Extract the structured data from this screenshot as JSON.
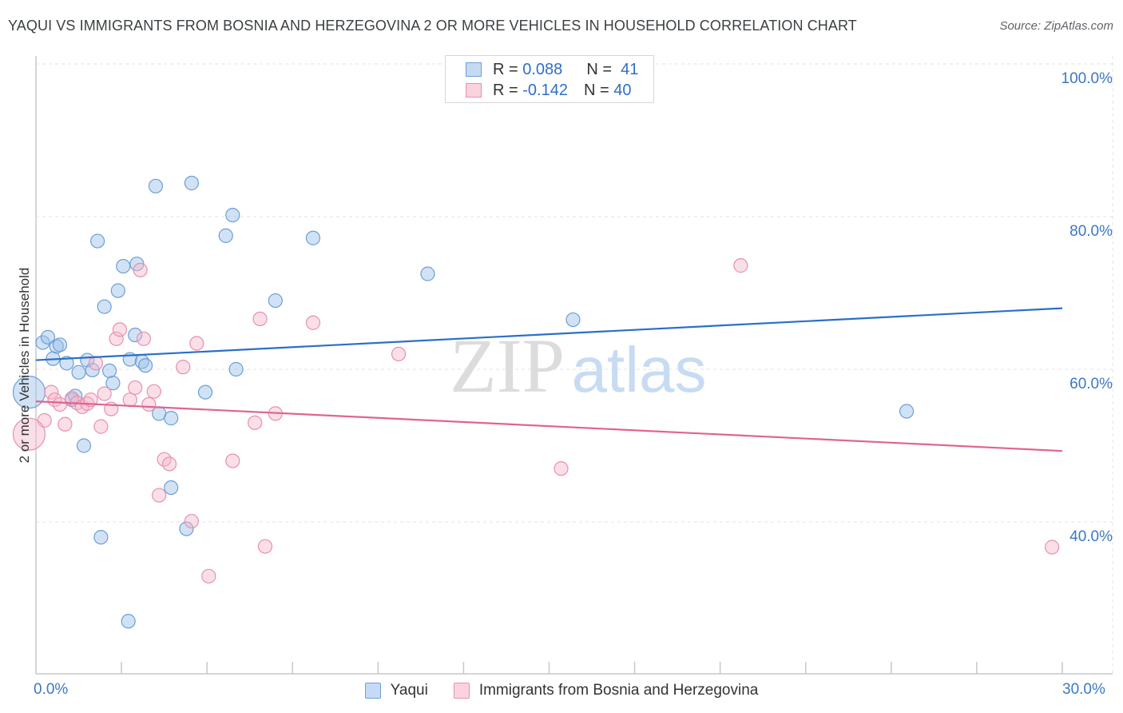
{
  "chart_data": {
    "type": "scatter",
    "title": "YAQUI VS IMMIGRANTS FROM BOSNIA AND HERZEGOVINA 2 OR MORE VEHICLES IN HOUSEHOLD CORRELATION CHART",
    "source": "Source: ZipAtlas.com",
    "ylabel": "2 or more Vehicles in Household",
    "xlabel": "",
    "xlim": [
      0,
      30
    ],
    "ylim": [
      20,
      102
    ],
    "x_tick_labels": {
      "min": "0.0%",
      "max": "30.0%"
    },
    "y_ticks": [
      {
        "value": 100,
        "label": "100.0%"
      },
      {
        "value": 80,
        "label": "80.0%"
      },
      {
        "value": 60,
        "label": "60.0%"
      },
      {
        "value": 40,
        "label": "40.0%"
      }
    ],
    "watermark": {
      "part1": "ZIP",
      "part2": "atlas"
    },
    "legend": [
      {
        "r_label": "R =",
        "r": "0.088",
        "n_label": "N =",
        "n": "41"
      },
      {
        "r_label": "R =",
        "r": "-0.142",
        "n_label": "N =",
        "n": "40"
      }
    ],
    "series": [
      {
        "name": "Yaqui",
        "color": "#9bbfe9",
        "stroke": "#6a9fd8",
        "line_color": "#2b6fc9",
        "trend": {
          "x0": 0,
          "y0": 61.2,
          "x1": 30,
          "y1": 68.0
        },
        "points": [
          [
            0.2,
            63.5
          ],
          [
            0.35,
            64.2
          ],
          [
            0.5,
            61.4
          ],
          [
            0.6,
            63.0
          ],
          [
            0.7,
            63.2
          ],
          [
            0.9,
            60.8
          ],
          [
            1.05,
            56.0
          ],
          [
            1.15,
            56.5
          ],
          [
            1.25,
            59.6
          ],
          [
            1.4,
            50.0
          ],
          [
            1.5,
            61.2
          ],
          [
            1.65,
            59.9
          ],
          [
            1.8,
            76.8
          ],
          [
            1.9,
            38.0
          ],
          [
            2.0,
            68.2
          ],
          [
            2.15,
            59.8
          ],
          [
            2.25,
            58.2
          ],
          [
            2.4,
            70.3
          ],
          [
            2.55,
            73.5
          ],
          [
            2.7,
            27.0
          ],
          [
            2.75,
            61.3
          ],
          [
            2.9,
            64.5
          ],
          [
            2.95,
            73.8
          ],
          [
            3.1,
            61.0
          ],
          [
            3.2,
            60.5
          ],
          [
            3.5,
            84.0
          ],
          [
            3.6,
            54.2
          ],
          [
            3.95,
            53.6
          ],
          [
            3.95,
            44.5
          ],
          [
            4.4,
            39.1
          ],
          [
            4.55,
            84.4
          ],
          [
            4.95,
            57.0
          ],
          [
            5.55,
            77.5
          ],
          [
            5.75,
            80.2
          ],
          [
            5.85,
            60.0
          ],
          [
            7.0,
            69.0
          ],
          [
            8.1,
            77.2
          ],
          [
            11.45,
            72.5
          ],
          [
            15.7,
            66.5
          ],
          [
            25.45,
            54.5
          ],
          [
            -0.2,
            57.0
          ]
        ],
        "big_point": {
          "x": -0.2,
          "y": 57.0
        }
      },
      {
        "name": "Immigrants from Bosnia and Herzegovina",
        "color": "#f6b9cc",
        "stroke": "#e88fae",
        "line_color": "#e0648f",
        "trend": {
          "x0": 0,
          "y0": 55.8,
          "x1": 30,
          "y1": 49.3
        },
        "points": [
          [
            0.25,
            53.3
          ],
          [
            0.45,
            57.0
          ],
          [
            0.55,
            56.0
          ],
          [
            0.7,
            55.4
          ],
          [
            0.85,
            52.8
          ],
          [
            1.05,
            56.2
          ],
          [
            1.2,
            55.6
          ],
          [
            1.35,
            55.1
          ],
          [
            1.5,
            55.5
          ],
          [
            1.6,
            56.0
          ],
          [
            1.75,
            60.8
          ],
          [
            1.9,
            52.5
          ],
          [
            2.0,
            56.8
          ],
          [
            2.2,
            54.8
          ],
          [
            2.35,
            64.0
          ],
          [
            2.45,
            65.2
          ],
          [
            2.75,
            56.0
          ],
          [
            2.9,
            57.6
          ],
          [
            3.05,
            73.0
          ],
          [
            3.15,
            64.0
          ],
          [
            3.3,
            55.4
          ],
          [
            3.45,
            57.1
          ],
          [
            3.6,
            43.5
          ],
          [
            3.75,
            48.2
          ],
          [
            3.9,
            47.6
          ],
          [
            4.3,
            60.3
          ],
          [
            4.55,
            40.1
          ],
          [
            4.7,
            63.4
          ],
          [
            5.05,
            32.9
          ],
          [
            5.75,
            48.0
          ],
          [
            6.4,
            53.0
          ],
          [
            6.55,
            66.6
          ],
          [
            6.7,
            36.8
          ],
          [
            7.0,
            54.2
          ],
          [
            8.1,
            66.1
          ],
          [
            10.6,
            62.0
          ],
          [
            15.35,
            47.0
          ],
          [
            20.6,
            73.6
          ],
          [
            29.7,
            36.7
          ],
          [
            -0.2,
            51.5
          ]
        ],
        "big_point": {
          "x": -0.2,
          "y": 51.5
        }
      }
    ]
  }
}
